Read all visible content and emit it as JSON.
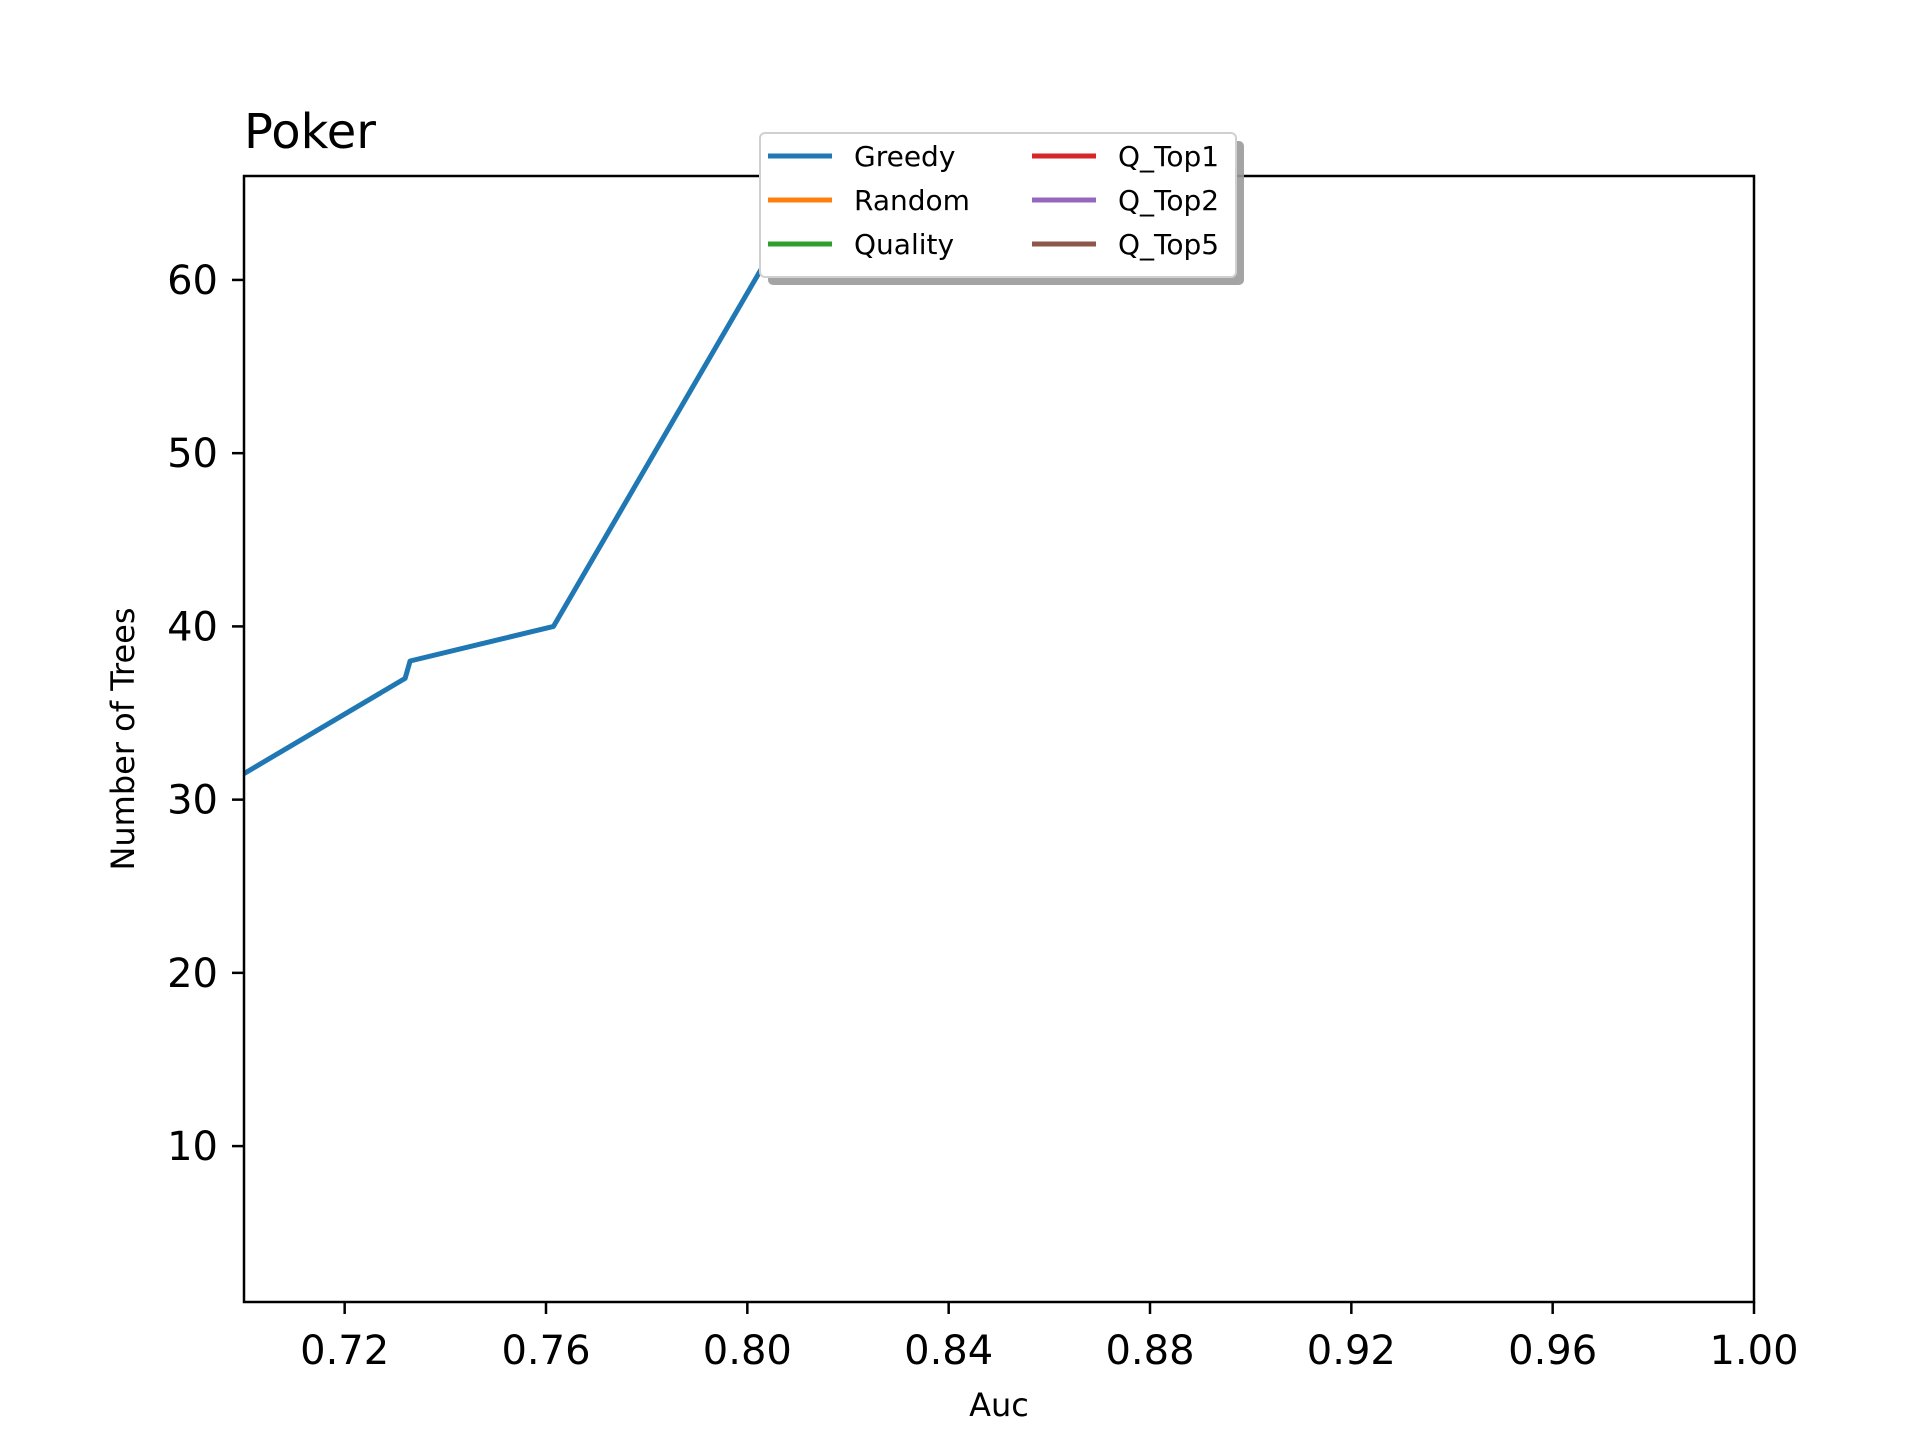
{
  "chart_data": {
    "type": "line",
    "title": "Poker",
    "xlabel": "Auc",
    "ylabel": "Number of Trees",
    "xlim": [
      0.7,
      1.0
    ],
    "ylim": [
      1,
      66
    ],
    "x_ticks": [
      "0.72",
      "0.76",
      "0.80",
      "0.84",
      "0.88",
      "0.92",
      "0.96",
      "1.00"
    ],
    "x_tick_values": [
      0.72,
      0.76,
      0.8,
      0.84,
      0.88,
      0.92,
      0.96,
      1.0
    ],
    "y_ticks": [
      "10",
      "20",
      "30",
      "40",
      "50",
      "60"
    ],
    "y_tick_values": [
      10,
      20,
      30,
      40,
      50,
      60
    ],
    "grid": false,
    "legend_position": "top-center",
    "legend_columns": 2,
    "series": [
      {
        "name": "Greedy",
        "color": "#1f77b4",
        "x": [
          0.7,
          0.732,
          0.7325,
          0.733,
          0.7615,
          0.8035,
          0.812
        ],
        "y": [
          31.5,
          37.0,
          37.5,
          38.0,
          40.0,
          61.0,
          66.0
        ]
      },
      {
        "name": "Random",
        "color": "#ff7f0e",
        "x": [],
        "y": []
      },
      {
        "name": "Quality",
        "color": "#2ca02c",
        "x": [],
        "y": []
      },
      {
        "name": "Q_Top1",
        "color": "#d62728",
        "x": [],
        "y": []
      },
      {
        "name": "Q_Top2",
        "color": "#9467bd",
        "x": [],
        "y": []
      },
      {
        "name": "Q_Top5",
        "color": "#8c564b",
        "x": [],
        "y": []
      }
    ]
  }
}
